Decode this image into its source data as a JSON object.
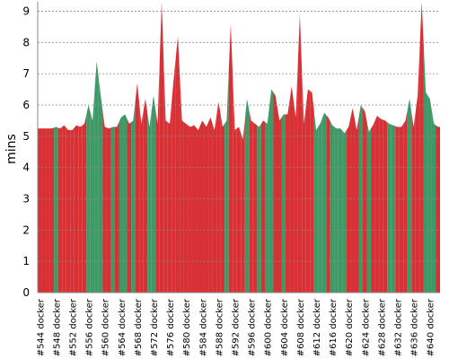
{
  "chart_data": {
    "type": "area",
    "y_label": "mins",
    "categories": [
      "#544 docker",
      null,
      null,
      null,
      "#548 docker",
      null,
      null,
      null,
      "#552 docker",
      null,
      null,
      null,
      "#556 docker",
      null,
      null,
      null,
      "#560 docker",
      null,
      null,
      null,
      "#564 docker",
      null,
      null,
      null,
      "#568 docker",
      null,
      null,
      null,
      "#572 docker",
      null,
      null,
      null,
      "#576 docker",
      null,
      null,
      null,
      "#580 docker",
      null,
      null,
      null,
      "#584 docker",
      null,
      null,
      null,
      "#588 docker",
      null,
      null,
      null,
      "#592 docker",
      null,
      null,
      null,
      "#596 docker",
      null,
      null,
      null,
      "#600 docker",
      null,
      null,
      null,
      "#604 docker",
      null,
      null,
      null,
      "#608 docker",
      null,
      null,
      null,
      "#612 docker",
      null,
      null,
      null,
      "#616 docker",
      null,
      null,
      null,
      "#620 docker",
      null,
      null,
      null,
      "#624 docker",
      null,
      null,
      null,
      "#628 docker",
      null,
      null,
      null,
      "#632 docker",
      null,
      null,
      null,
      "#636 docker",
      null,
      null,
      null,
      "#640 docker",
      null,
      null
    ],
    "values": [
      5.25,
      5.25,
      5.25,
      5.25,
      5.3,
      5.25,
      5.35,
      5.2,
      5.2,
      5.35,
      5.3,
      5.4,
      6.0,
      5.5,
      7.4,
      6.3,
      5.3,
      5.25,
      5.3,
      5.3,
      5.6,
      5.7,
      5.4,
      5.5,
      6.7,
      5.4,
      6.2,
      5.3,
      6.3,
      5.4,
      9.3,
      5.5,
      5.4,
      6.9,
      8.2,
      5.5,
      5.4,
      5.3,
      5.35,
      5.2,
      5.5,
      5.3,
      5.6,
      5.2,
      6.1,
      5.3,
      5.5,
      8.6,
      5.2,
      5.3,
      4.9,
      6.2,
      5.5,
      5.4,
      5.3,
      5.5,
      5.4,
      6.5,
      6.3,
      5.5,
      5.7,
      5.7,
      6.6,
      5.6,
      8.9,
      5.4,
      6.5,
      6.4,
      5.2,
      5.4,
      5.75,
      5.6,
      5.35,
      5.25,
      5.25,
      5.1,
      5.3,
      5.9,
      5.2,
      6.0,
      5.8,
      5.15,
      5.35,
      5.65,
      5.55,
      5.5,
      5.4,
      5.35,
      5.3,
      5.3,
      5.5,
      6.2,
      5.3,
      6.3,
      9.3,
      6.4,
      6.2,
      5.4,
      5.3
    ],
    "colors": [
      "#d73035",
      "#d73035",
      "#d73035",
      "#d73035",
      "#3d9a67",
      "#d73035",
      "#d73035",
      "#d73035",
      "#d73035",
      "#d73035",
      "#d73035",
      "#d73035",
      "#3d9a67",
      "#3d9a67",
      "#3d9a67",
      "#3d9a67",
      "#d73035",
      "#d73035",
      "#3d9a67",
      "#d73035",
      "#3d9a67",
      "#3d9a67",
      "#d73035",
      "#3d9a67",
      "#d73035",
      "#d73035",
      "#d73035",
      "#3d9a67",
      "#3d9a67",
      "#d73035",
      "#d73035",
      "#d73035",
      "#d73035",
      "#d73035",
      "#d73035",
      "#d73035",
      "#d73035",
      "#d73035",
      "#d73035",
      "#d73035",
      "#d73035",
      "#d73035",
      "#d73035",
      "#d73035",
      "#d73035",
      "#d73035",
      "#3d9a67",
      "#d73035",
      "#d73035",
      "#d73035",
      "#d73035",
      "#3d9a67",
      "#d73035",
      "#d73035",
      "#3d9a67",
      "#d73035",
      "#3d9a67",
      "#3d9a67",
      "#d73035",
      "#d73035",
      "#3d9a67",
      "#d73035",
      "#d73035",
      "#d73035",
      "#d73035",
      "#d73035",
      "#d73035",
      "#d73035",
      "#3d9a67",
      "#3d9a67",
      "#3d9a67",
      "#d73035",
      "#3d9a67",
      "#3d9a67",
      "#3d9a67",
      "#3d9a67",
      "#d73035",
      "#d73035",
      "#d73035",
      "#3d9a67",
      "#d73035",
      "#3d9a67",
      "#d73035",
      "#d73035",
      "#d73035",
      "#d73035",
      "#3d9a67",
      "#3d9a67",
      "#d73035",
      "#d73035",
      "#d73035",
      "#3d9a67",
      "#d73035",
      "#d73035",
      "#d73035",
      "#3d9a67",
      "#3d9a67",
      "#3d9a67",
      "#d73035"
    ],
    "ylim": [
      0,
      9.3
    ],
    "yticks": [
      0,
      1,
      2,
      3,
      4,
      5,
      6,
      7,
      8,
      9
    ],
    "grid": true
  }
}
